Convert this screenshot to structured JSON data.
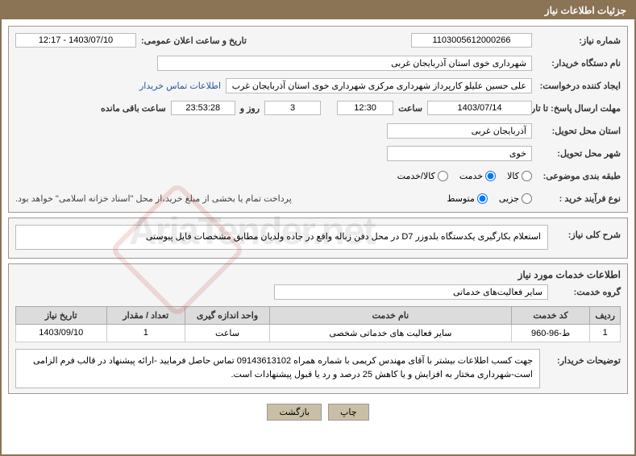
{
  "header": {
    "title": "جزئیات اطلاعات نیاز"
  },
  "fields": {
    "need_no_label": "شماره نیاز:",
    "need_no": "1103005612000266",
    "announce_label": "تاریخ و ساعت اعلان عمومی:",
    "announce": "1403/07/10 - 12:17",
    "buyer_org_label": "نام دستگاه خریدار:",
    "buyer_org": "شهرداری خوی استان آذربایجان غربی",
    "requester_label": "ایجاد کننده درخواست:",
    "requester": "علی حسین علیلو کارپرداز شهرداری مرکزی شهرداری خوی استان آذربایجان غرب",
    "contact_link": "اطلاعات تماس خریدار",
    "deadline_label": "مهلت ارسال پاسخ: تا تاریخ:",
    "deadline_date": "1403/07/14",
    "time_label_1": "ساعت",
    "deadline_time": "12:30",
    "days_remain": "3",
    "days_label": "روز و",
    "time_remain": "23:53:28",
    "remain_label": "ساعت باقی مانده",
    "deliv_prov_label": "استان محل تحویل:",
    "deliv_prov": "آذربایجان غربی",
    "deliv_city_label": "شهر محل تحویل:",
    "deliv_city": "خوی",
    "subject_class_label": "طبقه بندی موضوعی:",
    "radio_goods": "کالا",
    "radio_service": "خدمت",
    "radio_goods_service": "کالا/خدمت",
    "buy_type_label": "نوع فرآیند خرید :",
    "radio_partial": "جزیی",
    "radio_medium": "متوسط",
    "payment_note": "پرداخت تمام یا بخشی از مبلغ خرید،از محل \"اسناد خزانه اسلامی\" خواهد بود.",
    "need_summary_label": "شرح کلی نیاز:",
    "need_summary": "استعلام بکارگیری یکدستگاه بلدوزر D7 در محل دفن زباله واقع در جاده ولدیان مطابق مشخصات فایل پیوستی",
    "services_title": "اطلاعات خدمات مورد نیاز",
    "service_group_label": "گروه خدمت:",
    "service_group": "سایر فعالیت‌های خدماتی",
    "buyer_notes_label": "توضیحات خریدار:",
    "buyer_notes": "جهت کسب اطلاعات بیشتر با آقای مهندس کریمی با شماره همراه 09143613102 تماس حاصل فرمایید -ارائه پیشنهاد در قالب فرم الزامی است-شهرداری مختار به افزایش و یا کاهش 25 درصد و رد یا قبول پیشنهادات است."
  },
  "table": {
    "columns": [
      "ردیف",
      "کد خدمت",
      "نام خدمت",
      "واحد اندازه گیری",
      "تعداد / مقدار",
      "تاریخ نیاز"
    ],
    "col_widths": [
      "5%",
      "13%",
      "40%",
      "14%",
      "13%",
      "15%"
    ],
    "rows": [
      [
        "1",
        "ط-96-960",
        "سایر فعالیت های خدماتی شخصی",
        "ساعت",
        "1",
        "1403/09/10"
      ]
    ]
  },
  "buttons": {
    "print": "چاپ",
    "back": "بازگشت"
  },
  "colors": {
    "header_bg": "#8b7355",
    "header_fg": "#ffffff",
    "panel_bg": "#f5f5f5",
    "panel_border": "#999999",
    "box_border": "#bbbbbb",
    "link": "#2b5797",
    "th_bg": "#dcdcdc",
    "btn_bg": "#c8bfa6"
  }
}
